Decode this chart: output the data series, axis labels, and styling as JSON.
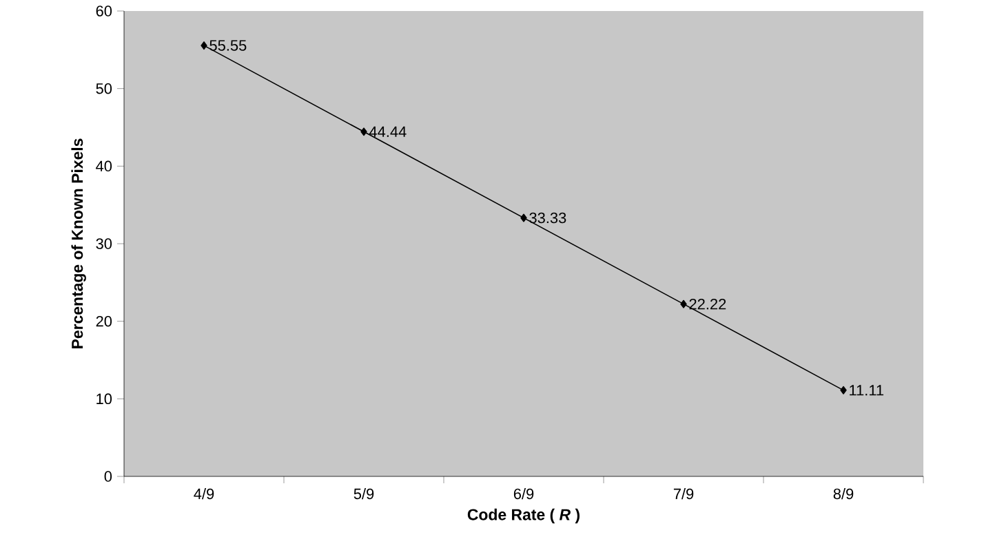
{
  "chart_data": {
    "type": "line",
    "xlabel": "Code Rate ( *R* )",
    "ylabel": "Percentage of Known Pixels",
    "categories": [
      "4/9",
      "5/9",
      "6/9",
      "7/9",
      "8/9"
    ],
    "values": [
      55.55,
      44.44,
      33.33,
      22.22,
      11.11
    ],
    "color": "#000000",
    "marker": "diamond",
    "line_style": "solid",
    "ylim": [
      0,
      60
    ],
    "yticks": [
      0,
      10,
      20,
      30,
      40,
      50,
      60
    ],
    "data_labels": true
  }
}
